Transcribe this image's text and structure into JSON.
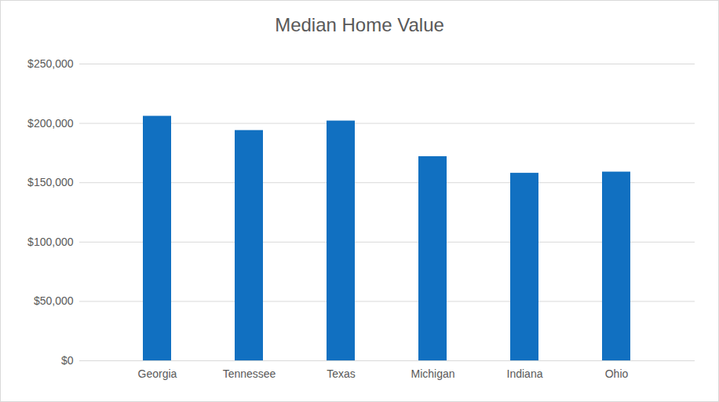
{
  "chart_data": {
    "type": "bar",
    "title": "Median Home Value",
    "categories": [
      "Georgia",
      "Tennessee",
      "Texas",
      "Michigan",
      "Indiana",
      "Ohio"
    ],
    "values": [
      206000,
      194000,
      202000,
      172000,
      158000,
      159000
    ],
    "color": "#1170c1",
    "ylim": [
      0,
      250000
    ],
    "yticks": [
      {
        "value": 0,
        "label": "$0"
      },
      {
        "value": 50000,
        "label": "$50,000"
      },
      {
        "value": 100000,
        "label": "$100,000"
      },
      {
        "value": 150000,
        "label": "$150,000"
      },
      {
        "value": 200000,
        "label": "$200,000"
      },
      {
        "value": 250000,
        "label": "$250,000"
      }
    ],
    "grid": true
  }
}
